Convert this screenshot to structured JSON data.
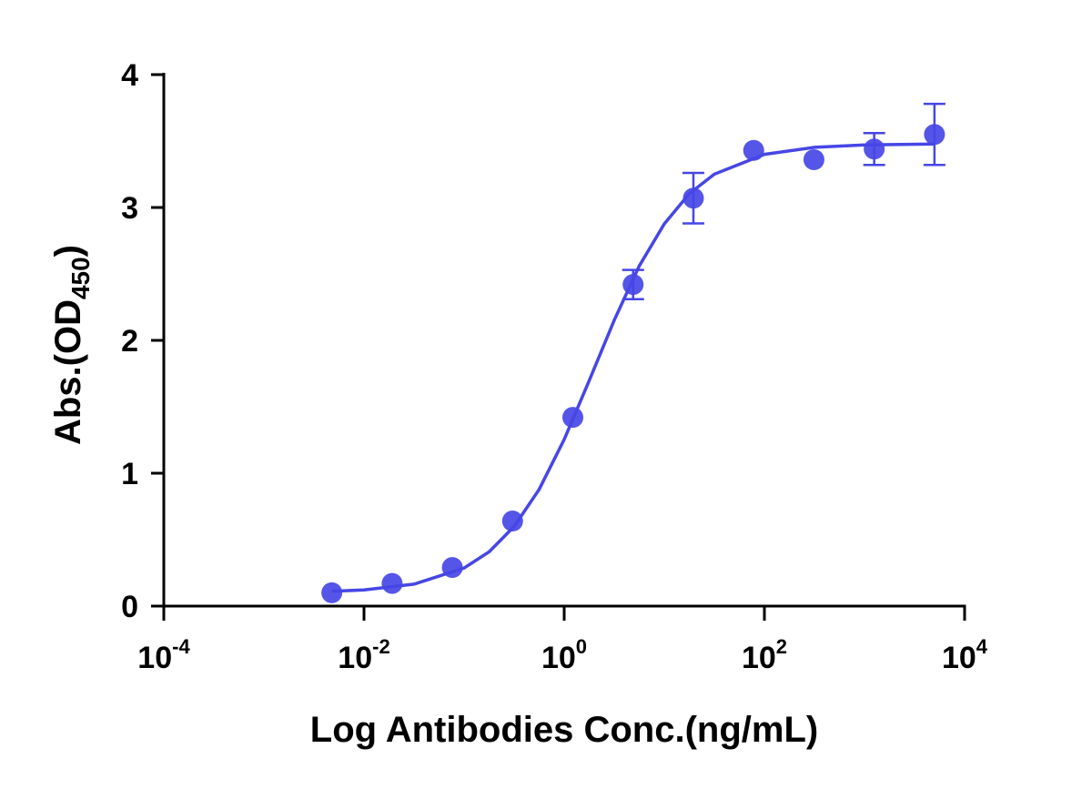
{
  "chart_data": {
    "type": "scatter",
    "x_label": "Log Antibodies Conc.(ng/mL)",
    "y_label": "Abs.(OD450)",
    "x_scale": "log",
    "xlim": [
      0.0001,
      10000
    ],
    "xticks": [
      {
        "value": 0.0001,
        "label": "10-4"
      },
      {
        "value": 0.01,
        "label": "10-2"
      },
      {
        "value": 1,
        "label": "100"
      },
      {
        "value": 100,
        "label": "102"
      },
      {
        "value": 10000,
        "label": "104"
      }
    ],
    "ylim": [
      0,
      4
    ],
    "yticks": [
      0,
      1,
      2,
      3,
      4
    ],
    "series": [
      {
        "color": "#4646e6",
        "x": [
          0.00477,
          0.0191,
          0.0763,
          0.305,
          1.22,
          4.88,
          19.53,
          78.13,
          312.5,
          1250,
          5000
        ],
        "values": [
          0.1,
          0.17,
          0.29,
          0.64,
          1.42,
          2.42,
          3.07,
          3.43,
          3.36,
          3.44,
          3.55
        ],
        "errors": [
          null,
          null,
          null,
          null,
          null,
          0.11,
          0.19,
          null,
          null,
          0.12,
          0.23
        ]
      }
    ],
    "fit": {
      "color": "#4646e6",
      "x": [
        0.00479,
        0.01,
        0.0316,
        0.1,
        0.178,
        0.316,
        0.562,
        1,
        1.78,
        3.16,
        5.62,
        10,
        17.8,
        31.6,
        100,
        316,
        1000,
        5012
      ],
      "values": [
        0.111,
        0.122,
        0.165,
        0.286,
        0.408,
        0.599,
        0.879,
        1.254,
        1.697,
        2.152,
        2.56,
        2.877,
        3.104,
        3.251,
        3.4,
        3.453,
        3.471,
        3.478
      ]
    }
  }
}
